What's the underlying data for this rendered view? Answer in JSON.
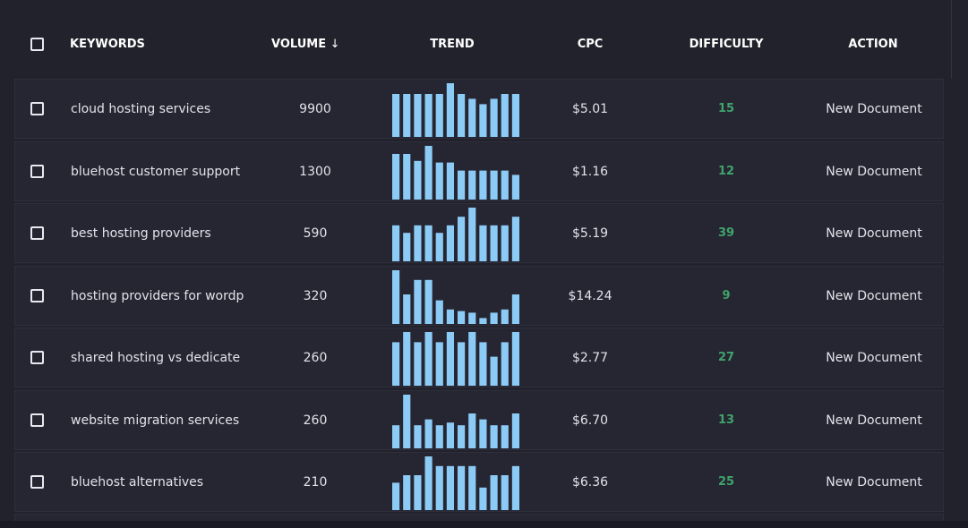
{
  "table": {
    "headers": [
      "KEYWORDS",
      "VOLUME",
      "TREND",
      "CPC",
      "DIFFICULTY",
      "ACTION"
    ],
    "rows": [
      {
        "keyword": "cloud hosting services",
        "volume": 9900,
        "trend": [
          80,
          80,
          80,
          80,
          80,
          100,
          80,
          71,
          61,
          71,
          80,
          80
        ],
        "cpc": "$5.01",
        "difficulty": 15,
        "action": "New Document"
      },
      {
        "keyword": "bluehost customer support",
        "volume": 1300,
        "trend": [
          85,
          85,
          72,
          100,
          69,
          69,
          54,
          54,
          54,
          54,
          54,
          46
        ],
        "cpc": "$1.16",
        "difficulty": 12,
        "action": "New Document"
      },
      {
        "keyword": "best hosting providers",
        "volume": 590,
        "trend": [
          67,
          53,
          67,
          67,
          53,
          67,
          83,
          100,
          67,
          67,
          67,
          83
        ],
        "cpc": "$5.19",
        "difficulty": 39,
        "action": "New Document"
      },
      {
        "keyword": "hosting providers for wordp",
        "volume": 320,
        "trend": [
          100,
          55,
          82,
          82,
          44,
          27,
          24,
          21,
          11,
          21,
          27,
          55
        ],
        "cpc": "$14.24",
        "difficulty": 9,
        "action": "New Document"
      },
      {
        "keyword": "shared hosting vs dedicate",
        "volume": 260,
        "trend": [
          81,
          100,
          81,
          100,
          81,
          100,
          81,
          100,
          81,
          54,
          81,
          100
        ],
        "cpc": "$2.77",
        "difficulty": 27,
        "action": "New Document"
      },
      {
        "keyword": "website migration services",
        "volume": 260,
        "trend": [
          43,
          100,
          43,
          54,
          43,
          48,
          43,
          65,
          54,
          43,
          43,
          65
        ],
        "cpc": "$6.70",
        "difficulty": 13,
        "action": "New Document"
      },
      {
        "keyword": "bluehost alternatives",
        "volume": 210,
        "trend": [
          51,
          65,
          65,
          100,
          82,
          82,
          82,
          82,
          42,
          65,
          65,
          82
        ],
        "cpc": "$6.36",
        "difficulty": 25,
        "action": "New Document"
      }
    ]
  }
}
